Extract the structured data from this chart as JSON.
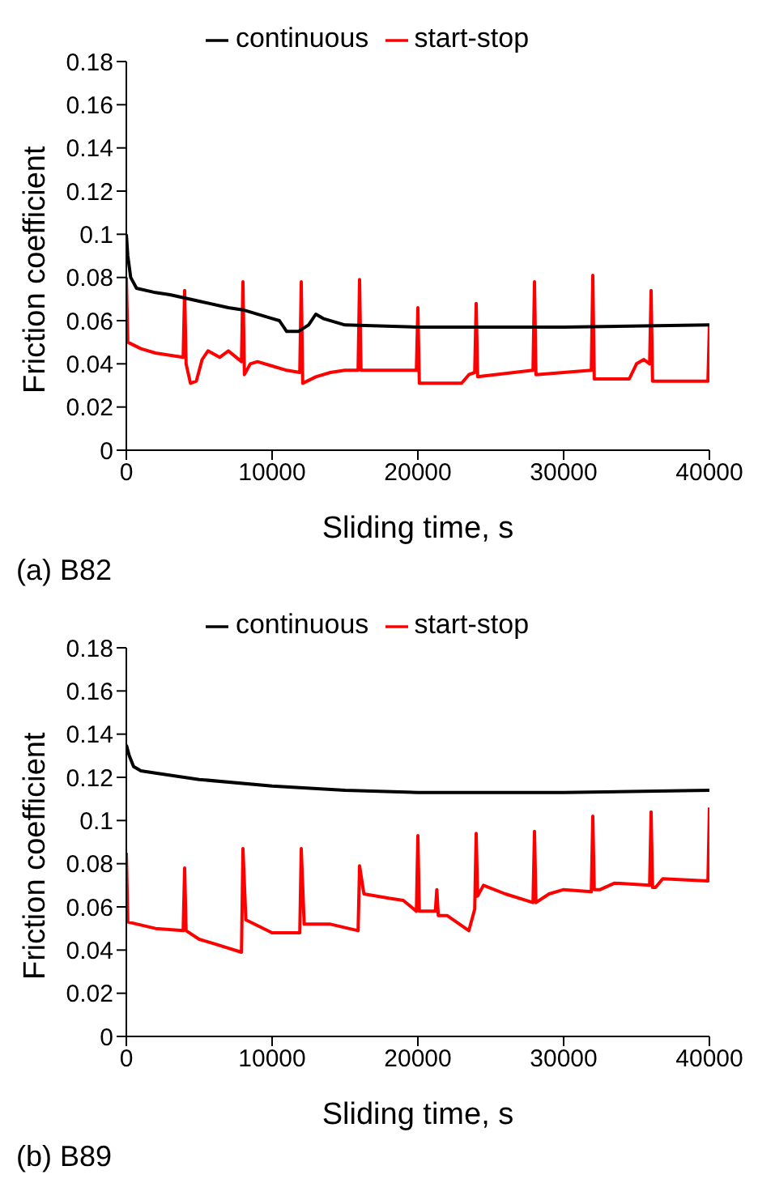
{
  "chart_data": [
    {
      "type": "line",
      "xlabel": "Sliding time, s",
      "ylabel": "Friction coefficient",
      "annotations": [
        "(a) B82"
      ],
      "xlim": [
        0,
        40000
      ],
      "xticks": [
        0,
        10000,
        20000,
        30000,
        40000
      ],
      "ylim": [
        0,
        0.18
      ],
      "yticks": [
        0,
        0.02,
        0.04,
        0.06,
        0.08,
        0.1,
        0.12,
        0.14,
        0.16,
        0.18
      ],
      "grid": false,
      "legend": "top",
      "marker": "none",
      "line_style": "solid",
      "series": [
        {
          "name": "start-stop",
          "color": "#ff0000",
          "x": [
            0,
            100,
            1000,
            2000,
            3900,
            4000,
            4100,
            4400,
            4800,
            5200,
            5600,
            6400,
            7000,
            7900,
            8000,
            8100,
            8500,
            9000,
            10000,
            11000,
            11900,
            12000,
            12100,
            13000,
            14000,
            15000,
            15900,
            16000,
            16100,
            19900,
            20000,
            20100,
            23000,
            23500,
            23900,
            24000,
            24100,
            27900,
            28000,
            28100,
            31900,
            32000,
            32100,
            34500,
            35000,
            35500,
            35900,
            36000,
            36100,
            39900,
            40000
          ],
          "values": [
            0.08,
            0.05,
            0.047,
            0.045,
            0.043,
            0.074,
            0.04,
            0.031,
            0.032,
            0.042,
            0.046,
            0.043,
            0.046,
            0.041,
            0.078,
            0.035,
            0.04,
            0.041,
            0.039,
            0.037,
            0.036,
            0.078,
            0.031,
            0.034,
            0.036,
            0.037,
            0.037,
            0.079,
            0.037,
            0.037,
            0.066,
            0.031,
            0.031,
            0.035,
            0.036,
            0.068,
            0.034,
            0.037,
            0.078,
            0.035,
            0.037,
            0.081,
            0.033,
            0.033,
            0.04,
            0.042,
            0.04,
            0.074,
            0.032,
            0.032,
            0.058
          ]
        },
        {
          "name": "continuous",
          "color": "#000000",
          "x": [
            0,
            100,
            300,
            700,
            2000,
            3000,
            5000,
            7000,
            8000,
            10000,
            10500,
            11000,
            11800,
            12500,
            13000,
            13500,
            15000,
            20000,
            30000,
            40000
          ],
          "values": [
            0.1,
            0.09,
            0.08,
            0.075,
            0.073,
            0.072,
            0.069,
            0.066,
            0.065,
            0.061,
            0.06,
            0.055,
            0.055,
            0.058,
            0.063,
            0.061,
            0.058,
            0.057,
            0.057,
            0.058
          ]
        }
      ]
    },
    {
      "type": "line",
      "xlabel": "Sliding time, s",
      "ylabel": "Friction coefficient",
      "annotations": [
        "(b) B89"
      ],
      "xlim": [
        0,
        40000
      ],
      "xticks": [
        0,
        10000,
        20000,
        30000,
        40000
      ],
      "ylim": [
        0,
        0.18
      ],
      "yticks": [
        0,
        0.02,
        0.04,
        0.06,
        0.08,
        0.1,
        0.12,
        0.14,
        0.16,
        0.18
      ],
      "grid": false,
      "legend": "top",
      "marker": "none",
      "line_style": "solid",
      "series": [
        {
          "name": "start-stop",
          "color": "#ff0000",
          "x": [
            0,
            100,
            2000,
            3900,
            4000,
            4100,
            5000,
            6000,
            7900,
            8000,
            8200,
            10000,
            11900,
            12000,
            12200,
            14000,
            15900,
            16000,
            16300,
            18000,
            19000,
            19900,
            20000,
            20100,
            21200,
            21300,
            21400,
            22000,
            23500,
            23900,
            24000,
            24100,
            24500,
            26000,
            27900,
            28000,
            28100,
            29000,
            30000,
            31900,
            32000,
            32100,
            32500,
            33500,
            35900,
            36000,
            36100,
            36300,
            36800,
            39900,
            40000
          ],
          "values": [
            0.085,
            0.053,
            0.05,
            0.049,
            0.078,
            0.049,
            0.045,
            0.043,
            0.039,
            0.087,
            0.054,
            0.048,
            0.048,
            0.087,
            0.052,
            0.052,
            0.049,
            0.079,
            0.066,
            0.064,
            0.063,
            0.058,
            0.093,
            0.058,
            0.058,
            0.068,
            0.056,
            0.056,
            0.049,
            0.059,
            0.094,
            0.065,
            0.07,
            0.066,
            0.062,
            0.095,
            0.062,
            0.066,
            0.068,
            0.067,
            0.102,
            0.068,
            0.068,
            0.071,
            0.07,
            0.104,
            0.069,
            0.069,
            0.073,
            0.072,
            0.106
          ]
        },
        {
          "name": "continuous",
          "color": "#000000",
          "x": [
            0,
            200,
            500,
            1000,
            2000,
            5000,
            10000,
            15000,
            20000,
            30000,
            40000
          ],
          "values": [
            0.135,
            0.13,
            0.125,
            0.123,
            0.122,
            0.119,
            0.116,
            0.114,
            0.113,
            0.113,
            0.114
          ]
        }
      ]
    }
  ]
}
